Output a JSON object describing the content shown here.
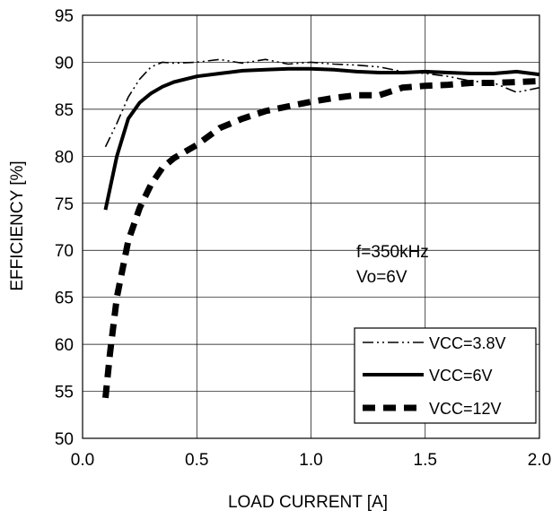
{
  "chart_data": {
    "type": "line",
    "title": "",
    "xlabel": "LOAD CURRENT [A]",
    "ylabel": "EFFICIENCY [%]",
    "xlim": [
      0.0,
      2.0
    ],
    "ylim": [
      50,
      95
    ],
    "x_ticks": [
      "0.0",
      "0.5",
      "1.0",
      "1.5",
      "2.0"
    ],
    "y_ticks": [
      "50",
      "55",
      "60",
      "65",
      "70",
      "75",
      "80",
      "85",
      "90",
      "95"
    ],
    "grid": true,
    "legend_position": "bottom-right",
    "annotations": [
      "f=350kHz",
      "Vo=6V"
    ],
    "series": [
      {
        "name": "VCC=3.8V",
        "line_style": "dash-dot-dot",
        "color": "#000000",
        "points": [
          [
            0.1,
            81.0
          ],
          [
            0.15,
            83.5
          ],
          [
            0.2,
            86.3
          ],
          [
            0.25,
            88.2
          ],
          [
            0.3,
            89.5
          ],
          [
            0.35,
            90.0
          ],
          [
            0.4,
            89.9
          ],
          [
            0.5,
            90.0
          ],
          [
            0.6,
            90.3
          ],
          [
            0.7,
            89.9
          ],
          [
            0.8,
            90.3
          ],
          [
            0.9,
            89.8
          ],
          [
            1.0,
            90.0
          ],
          [
            1.1,
            89.8
          ],
          [
            1.2,
            89.7
          ],
          [
            1.3,
            89.5
          ],
          [
            1.4,
            89.0
          ],
          [
            1.5,
            88.8
          ],
          [
            1.6,
            88.5
          ],
          [
            1.7,
            88.0
          ],
          [
            1.8,
            87.8
          ],
          [
            1.9,
            86.8
          ],
          [
            2.0,
            87.3
          ]
        ]
      },
      {
        "name": "VCC=6V",
        "line_style": "solid",
        "color": "#000000",
        "points": [
          [
            0.1,
            74.3
          ],
          [
            0.15,
            80.0
          ],
          [
            0.2,
            84.0
          ],
          [
            0.25,
            85.7
          ],
          [
            0.3,
            86.7
          ],
          [
            0.35,
            87.4
          ],
          [
            0.4,
            87.9
          ],
          [
            0.5,
            88.5
          ],
          [
            0.6,
            88.8
          ],
          [
            0.7,
            89.1
          ],
          [
            0.8,
            89.2
          ],
          [
            0.9,
            89.3
          ],
          [
            1.0,
            89.3
          ],
          [
            1.1,
            89.2
          ],
          [
            1.2,
            89.0
          ],
          [
            1.3,
            88.9
          ],
          [
            1.4,
            88.9
          ],
          [
            1.5,
            89.0
          ],
          [
            1.6,
            88.9
          ],
          [
            1.7,
            88.8
          ],
          [
            1.8,
            88.8
          ],
          [
            1.9,
            89.0
          ],
          [
            2.0,
            88.7
          ]
        ]
      },
      {
        "name": "VCC=12V",
        "line_style": "dashed",
        "color": "#000000",
        "points": [
          [
            0.1,
            54.3
          ],
          [
            0.12,
            59.0
          ],
          [
            0.15,
            65.0
          ],
          [
            0.2,
            71.0
          ],
          [
            0.25,
            74.5
          ],
          [
            0.3,
            77.0
          ],
          [
            0.35,
            78.8
          ],
          [
            0.4,
            79.8
          ],
          [
            0.5,
            81.2
          ],
          [
            0.6,
            83.0
          ],
          [
            0.7,
            84.0
          ],
          [
            0.8,
            84.8
          ],
          [
            0.9,
            85.3
          ],
          [
            1.0,
            85.8
          ],
          [
            1.1,
            86.2
          ],
          [
            1.2,
            86.5
          ],
          [
            1.3,
            86.5
          ],
          [
            1.4,
            87.3
          ],
          [
            1.5,
            87.5
          ],
          [
            1.6,
            87.6
          ],
          [
            1.7,
            87.8
          ],
          [
            1.8,
            87.8
          ],
          [
            1.9,
            87.9
          ],
          [
            2.0,
            88.0
          ]
        ]
      }
    ]
  }
}
